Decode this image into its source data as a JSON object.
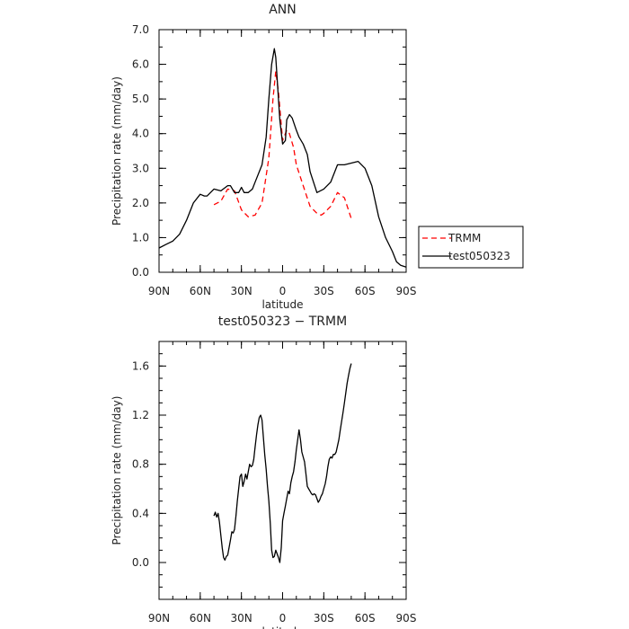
{
  "chart_data": [
    {
      "type": "line",
      "title": "ANN",
      "xlabel": "latitude",
      "ylabel": "Precipitation rate (mm/day)",
      "xlim": [
        90,
        -90
      ],
      "ylim": [
        0,
        7
      ],
      "x_ticks": [
        {
          "v": 90,
          "label": "90N"
        },
        {
          "v": 60,
          "label": "60N"
        },
        {
          "v": 30,
          "label": "30N"
        },
        {
          "v": 0,
          "label": "0"
        },
        {
          "v": -30,
          "label": "30S"
        },
        {
          "v": -60,
          "label": "60S"
        },
        {
          "v": -90,
          "label": "90S"
        }
      ],
      "y_ticks": [
        {
          "v": 0,
          "label": "0.0"
        },
        {
          "v": 1,
          "label": "1.0"
        },
        {
          "v": 2,
          "label": "2.0"
        },
        {
          "v": 3,
          "label": "3.0"
        },
        {
          "v": 4,
          "label": "4.0"
        },
        {
          "v": 5,
          "label": "5.0"
        },
        {
          "v": 6,
          "label": "6.0"
        },
        {
          "v": 7,
          "label": "7.0"
        }
      ],
      "legend": "right",
      "series": [
        {
          "name": "TRMM",
          "color": "#ff0000",
          "dash": true,
          "x": [
            50,
            45,
            40,
            35,
            30,
            25,
            20,
            15,
            10,
            7,
            5,
            3,
            0,
            -3,
            -5,
            -8,
            -10,
            -15,
            -20,
            -25,
            -28,
            -30,
            -35,
            -40,
            -45,
            -50
          ],
          "y": [
            1.95,
            2.05,
            2.4,
            2.35,
            1.8,
            1.6,
            1.65,
            2.0,
            3.3,
            5.0,
            5.8,
            5.2,
            3.8,
            4.1,
            4.0,
            3.6,
            3.1,
            2.5,
            1.9,
            1.7,
            1.65,
            1.7,
            1.9,
            2.3,
            2.15,
            1.55
          ]
        },
        {
          "name": "test050323",
          "color": "#000000",
          "dash": false,
          "x": [
            90,
            85,
            80,
            75,
            70,
            65,
            60,
            57,
            55,
            50,
            45,
            40,
            38,
            35,
            32,
            30,
            28,
            25,
            22,
            20,
            15,
            12,
            10,
            8,
            6,
            5,
            4,
            2,
            0,
            -2,
            -3,
            -5,
            -7,
            -10,
            -12,
            -15,
            -18,
            -20,
            -25,
            -30,
            -35,
            -40,
            -45,
            -50,
            -55,
            -60,
            -65,
            -70,
            -75,
            -80,
            -83,
            -86,
            -90
          ],
          "y": [
            0.7,
            0.8,
            0.9,
            1.1,
            1.5,
            2.0,
            2.25,
            2.2,
            2.2,
            2.4,
            2.35,
            2.5,
            2.5,
            2.3,
            2.3,
            2.45,
            2.3,
            2.3,
            2.4,
            2.6,
            3.1,
            3.9,
            5.0,
            6.0,
            6.45,
            6.2,
            5.6,
            4.4,
            3.7,
            3.8,
            4.4,
            4.55,
            4.45,
            4.1,
            3.9,
            3.7,
            3.4,
            2.9,
            2.3,
            2.4,
            2.6,
            3.1,
            3.1,
            3.15,
            3.2,
            3.0,
            2.5,
            1.6,
            1.0,
            0.6,
            0.3,
            0.2,
            0.15
          ]
        }
      ]
    },
    {
      "type": "line",
      "title": "test050323 − TRMM",
      "xlabel": "latitude",
      "ylabel": "Precipitation rate (mm/day)",
      "xlim": [
        90,
        -90
      ],
      "ylim": [
        -0.3,
        1.8
      ],
      "x_ticks": [
        {
          "v": 90,
          "label": "90N"
        },
        {
          "v": 60,
          "label": "60N"
        },
        {
          "v": 30,
          "label": "30N"
        },
        {
          "v": 0,
          "label": "0"
        },
        {
          "v": -30,
          "label": "30S"
        },
        {
          "v": -60,
          "label": "60S"
        },
        {
          "v": -90,
          "label": "90S"
        }
      ],
      "y_ticks": [
        {
          "v": 0,
          "label": "0.0"
        },
        {
          "v": 0.4,
          "label": "0.4"
        },
        {
          "v": 0.8,
          "label": "0.8"
        },
        {
          "v": 1.2,
          "label": "1.2"
        },
        {
          "v": 1.6,
          "label": "1.6"
        }
      ],
      "series": [
        {
          "color": "#000000",
          "dash": false,
          "x": [
            50,
            49,
            48,
            47,
            46,
            45,
            44,
            43,
            42,
            41,
            40,
            39,
            38,
            37,
            36,
            35,
            34,
            33,
            32,
            31,
            30,
            29,
            28,
            27,
            26,
            25,
            24,
            23,
            22,
            21,
            20,
            19,
            18,
            17,
            16,
            15,
            14,
            13,
            12,
            11,
            10,
            9,
            8,
            7,
            6,
            5,
            4,
            3,
            2,
            1,
            0,
            -1,
            -2,
            -3,
            -4,
            -5,
            -6,
            -7,
            -8,
            -9,
            -10,
            -11,
            -12,
            -13,
            -14,
            -15,
            -16,
            -17,
            -18,
            -19,
            -20,
            -21,
            -22,
            -23,
            -24,
            -25,
            -26,
            -27,
            -28,
            -29,
            -30,
            -31,
            -32,
            -33,
            -34,
            -35,
            -36,
            -37,
            -38,
            -39,
            -40,
            -41,
            -42,
            -43,
            -44,
            -45,
            -46,
            -47,
            -48,
            -49,
            -50
          ],
          "y": [
            0.38,
            0.41,
            0.37,
            0.4,
            0.33,
            0.22,
            0.12,
            0.04,
            0.02,
            0.05,
            0.06,
            0.12,
            0.18,
            0.25,
            0.24,
            0.27,
            0.38,
            0.5,
            0.6,
            0.7,
            0.72,
            0.62,
            0.66,
            0.72,
            0.68,
            0.74,
            0.8,
            0.78,
            0.79,
            0.84,
            0.94,
            1.04,
            1.12,
            1.18,
            1.2,
            1.16,
            1.02,
            0.88,
            0.76,
            0.62,
            0.5,
            0.32,
            0.1,
            0.04,
            0.05,
            0.1,
            0.07,
            0.04,
            0.0,
            0.12,
            0.34,
            0.4,
            0.46,
            0.52,
            0.58,
            0.56,
            0.65,
            0.7,
            0.74,
            0.82,
            0.92,
            1.0,
            1.08,
            1.0,
            0.9,
            0.86,
            0.82,
            0.72,
            0.62,
            0.6,
            0.58,
            0.56,
            0.55,
            0.56,
            0.55,
            0.52,
            0.49,
            0.51,
            0.54,
            0.56,
            0.6,
            0.64,
            0.7,
            0.78,
            0.84,
            0.86,
            0.85,
            0.88,
            0.88,
            0.9,
            0.95,
            1.0,
            1.08,
            1.15,
            1.22,
            1.3,
            1.38,
            1.46,
            1.52,
            1.58,
            1.62
          ]
        }
      ]
    }
  ]
}
